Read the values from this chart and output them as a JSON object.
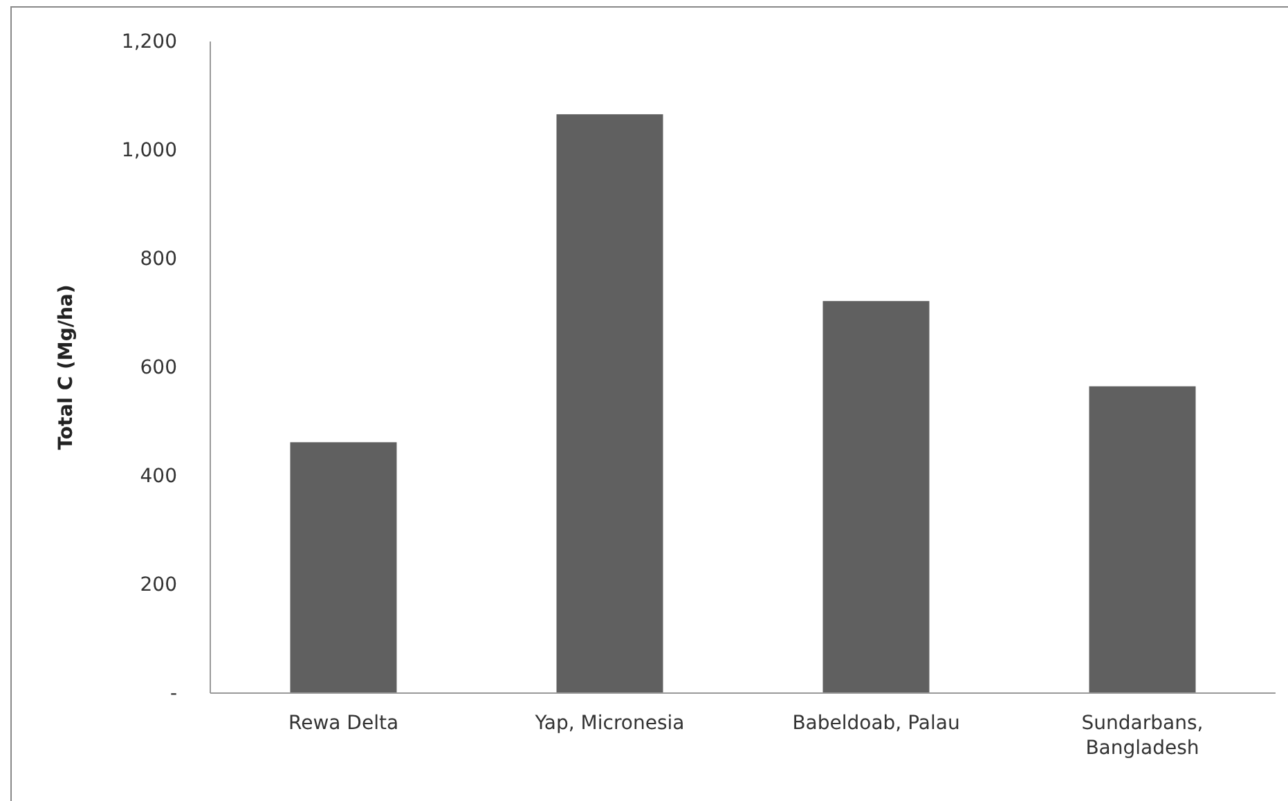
{
  "chart_data": {
    "type": "bar",
    "ylabel": "Total C (Mg/ha)",
    "categories": [
      "Rewa Delta",
      "Yap, Micronesia",
      "Babeldoab, Palau",
      "Sundarbans, Bangladesh"
    ],
    "values": [
      462,
      1066,
      722,
      565
    ],
    "color": "#606060",
    "ylim": [
      0,
      1200
    ],
    "yticks": [
      {
        "value": 0,
        "label": "-"
      },
      {
        "value": 200,
        "label": "200"
      },
      {
        "value": 400,
        "label": "400"
      },
      {
        "value": 600,
        "label": "600"
      },
      {
        "value": 800,
        "label": "800"
      },
      {
        "value": 1000,
        "label": "1,000"
      },
      {
        "value": 1200,
        "label": "1,200"
      }
    ],
    "grid": false
  }
}
